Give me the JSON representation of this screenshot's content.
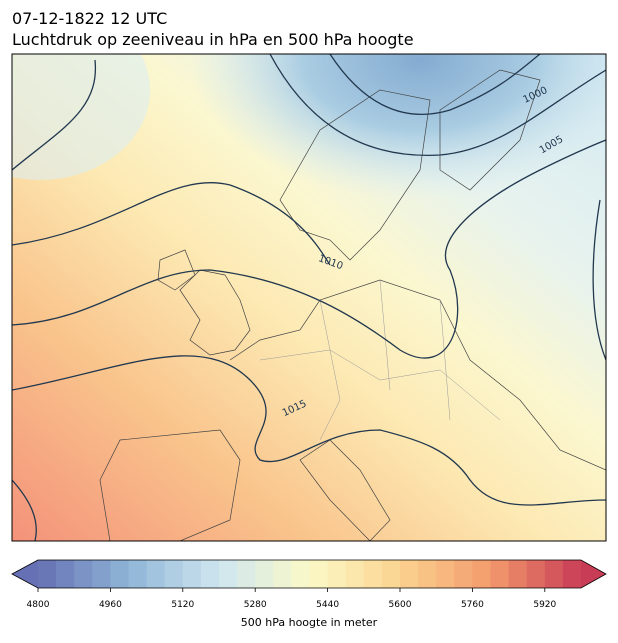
{
  "header": {
    "title_line1": "07-12-1822 12 UTC",
    "title_line2": "Luchtdruk op zeeniveau in hPa en 500 hPa hoogte"
  },
  "contour_labels": [
    "1000",
    "1005",
    "1010",
    "1015"
  ],
  "colorbar": {
    "label": "500 hPa hoogte in meter",
    "lim": [
      4800,
      6000
    ],
    "step": 40,
    "ticks": [
      4800,
      4960,
      5120,
      5280,
      5440,
      5600,
      5760,
      5920
    ],
    "colors": [
      "#6670b4",
      "#8fb5d6",
      "#cfe6f0",
      "#fbf9c8",
      "#fbd38f",
      "#f39a6c",
      "#c83c56"
    ]
  }
}
